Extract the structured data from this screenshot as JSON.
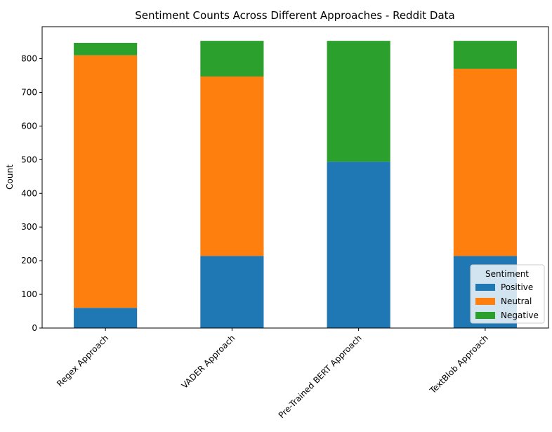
{
  "chart_data": {
    "type": "bar",
    "stacked": true,
    "title": "Sentiment Counts Across Different Approaches - Reddit Data",
    "xlabel": "",
    "ylabel": "Count",
    "categories": [
      "Regex Approach",
      "VADER Approach",
      "Pre-Trained BERT Approach",
      "TextBlob Approach"
    ],
    "series": [
      {
        "name": "Positive",
        "color": "#1f77b4",
        "values": [
          60,
          214,
          494,
          214
        ]
      },
      {
        "name": "Neutral",
        "color": "#ff7f0e",
        "values": [
          750,
          533,
          0,
          556
        ]
      },
      {
        "name": "Negative",
        "color": "#2ca02c",
        "values": [
          37,
          106,
          359,
          83
        ]
      }
    ],
    "ylim": [
      0,
      895
    ],
    "yticks": [
      0,
      100,
      200,
      300,
      400,
      500,
      600,
      700,
      800
    ],
    "grid": false,
    "legend": {
      "title": "Sentiment",
      "placement": "lower-right"
    }
  }
}
